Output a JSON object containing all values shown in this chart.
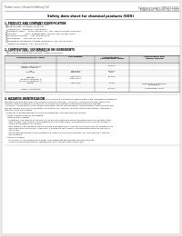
{
  "background_color": "#f0ede8",
  "page_bg": "#ffffff",
  "title": "Safety data sheet for chemical products (SDS)",
  "header_left": "Product name: Lithium Ion Battery Cell",
  "header_right_line1": "Substance number: SBN-008-00010",
  "header_right_line2": "Established / Revision: Dec.7.2015",
  "section1_title": "1. PRODUCT AND COMPANY IDENTIFICATION",
  "section1_lines": [
    "  ・Product name: Lithium Ion Battery Cell",
    "  ・Product code: Cylindrical-type cell",
    "    (IHR18650U, IHR18650L, IHR18650A)",
    "  ・Company name:    Sanyo Electric Co., Ltd., Mobile Energy Company",
    "  ・Address:            2001, Kamitakaido, Sumoto-City, Hyogo, Japan",
    "  ・Telephone number:   +81-799-26-4111",
    "  ・Fax number:   +81-799-26-4129",
    "  ・Emergency telephone number (Weekday) +81-799-26-2662",
    "    (Night and holiday) +81-799-26-4101"
  ],
  "section2_title": "2. COMPOSITION / INFORMATION ON INGREDIENTS",
  "section2_lines": [
    "  ・Substance or preparation: Preparation",
    "    ・Information about the chemical nature of product:"
  ],
  "table_headers": [
    "Common/chemical name",
    "CAS number",
    "Concentration /\nConcentration range",
    "Classification and\nhazard labeling"
  ],
  "table_rows": [
    [
      "Chemical name",
      "",
      "",
      ""
    ],
    [
      "Lithium cobalt oxide\n(LiMnxCoyNizO2)",
      "-",
      "30-60%",
      "-"
    ],
    [
      "Iron\nAluminum",
      "7439-89-6\n7429-90-5",
      "10-20%\n2.6%",
      "-\n-"
    ],
    [
      "Graphite\n(Mixed or graphite-1)\n(All-Mix or graphite-1)",
      "77590-42-5\n77594-44-2",
      "10-20%",
      "-"
    ],
    [
      "Copper",
      "7440-50-8",
      "5-15%",
      "Sensitization of the skin\ngroup No.2"
    ],
    [
      "Organic electrolyte",
      "-",
      "10-20%",
      "Inflammable liquid"
    ]
  ],
  "row_heights": [
    3.0,
    5.5,
    6.5,
    7.0,
    6.0,
    4.5
  ],
  "section3_title": "3. HAZARDS IDENTIFICATION",
  "section3_lines": [
    "For the battery cell, chemical materials are stored in a hermetically sealed metal case, designed to withstand",
    "temperatures and pressure-accumulation during normal use. As a result, during normal use, there is no",
    "physical danger of ignition or explosion and there is no danger of hazardous materials leakage.",
    "  However, if exposed to a fire, added mechanical shocks, decomposed, shorted electric wires by miss-use,",
    "the gas release vent will be operated. The battery cell case will be breached at fire-extreme. Hazardous",
    "materials may be released.",
    "  Moreover, if heated strongly by the surrounding fire, soot gas may be emitted.",
    "",
    "  • Most important hazard and effects:",
    "    Human health effects:",
    "      Inhalation: The release of the electrolyte has an anesthesia action and stimulates in respiratory tract.",
    "      Skin contact: The release of the electrolyte stimulates a skin. The electrolyte skin contact causes a",
    "      sore and stimulation on the skin.",
    "      Eye contact: The release of the electrolyte stimulates eyes. The electrolyte eye contact causes a sore",
    "      and stimulation on the eye. Especially, a substance that causes a strong inflammation of the eye is",
    "      contained.",
    "      Environmental effects: Since a battery cell remains in the environment, do not throw out it into the",
    "      environment.",
    "",
    "  • Specific hazards:",
    "      If the electrolyte contacts with water, it will generate detrimental hydrogen fluoride.",
    "      Since the used electrolyte is inflammable liquid, do not bring close to fire."
  ]
}
